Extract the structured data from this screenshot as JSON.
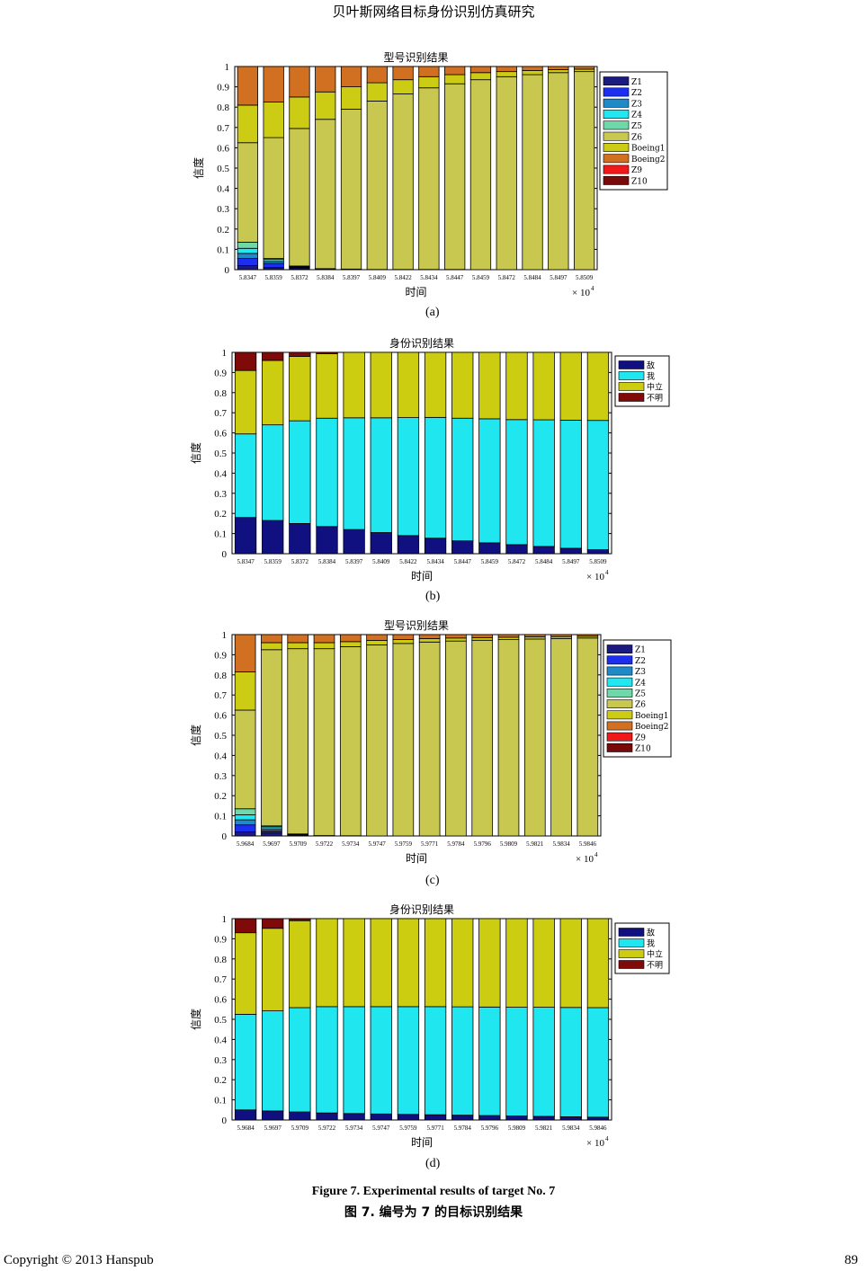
{
  "header": "贝叶斯网络目标身份识别仿真研究",
  "figure_caption_en": "Figure 7. Experimental results of target No. 7",
  "figure_caption_zh": "图 7.  编号为 7 的目标识别结果",
  "footer": {
    "copyright": "Copyright © 2013 Hanspub",
    "page_number": "89"
  },
  "chart_data": [
    {
      "type": "bar",
      "stacked": true,
      "panel_label": "(a)",
      "title": "型号识别结果",
      "xlabel": "时间",
      "ylabel": "信度",
      "x_multiplier": "× 10",
      "x_multiplier_exp": "4",
      "ylim": [
        0,
        1
      ],
      "yticks": [
        "0",
        "0.1",
        "0.2",
        "0.3",
        "0.4",
        "0.5",
        "0.6",
        "0.7",
        "0.8",
        "0.9",
        "1"
      ],
      "legend_position": "right",
      "categories": [
        "5.8347",
        "5.8359",
        "5.8372",
        "5.8384",
        "5.8397",
        "5.8409",
        "5.8422",
        "5.8434",
        "5.8447",
        "5.8459",
        "5.8472",
        "5.8484",
        "5.8497",
        "5.8509"
      ],
      "series": [
        {
          "name": "Z1",
          "color": "#1a1a80",
          "values": [
            0.02,
            0.01,
            0.005,
            0.003,
            0.002,
            0.001,
            0.001,
            0.001,
            0.001,
            0,
            0,
            0,
            0,
            0
          ]
        },
        {
          "name": "Z2",
          "color": "#1c2ef0",
          "values": [
            0.035,
            0.02,
            0.005,
            0.002,
            0.001,
            0,
            0,
            0,
            0,
            0,
            0,
            0,
            0,
            0
          ]
        },
        {
          "name": "Z3",
          "color": "#1e8ac8",
          "values": [
            0.025,
            0.01,
            0.003,
            0,
            0,
            0,
            0,
            0,
            0,
            0,
            0,
            0,
            0,
            0
          ]
        },
        {
          "name": "Z4",
          "color": "#22e6f0",
          "values": [
            0.025,
            0.01,
            0.003,
            0,
            0,
            0,
            0,
            0,
            0,
            0,
            0,
            0,
            0,
            0
          ]
        },
        {
          "name": "Z5",
          "color": "#6ed8a8",
          "values": [
            0.03,
            0.005,
            0.002,
            0,
            0,
            0,
            0,
            0,
            0,
            0,
            0,
            0,
            0,
            0
          ]
        },
        {
          "name": "Z6",
          "color": "#c8c850",
          "values": [
            0.49,
            0.595,
            0.677,
            0.735,
            0.787,
            0.829,
            0.864,
            0.894,
            0.914,
            0.935,
            0.95,
            0.96,
            0.97,
            0.975
          ]
        },
        {
          "name": "Boeing1",
          "color": "#cccc14",
          "values": [
            0.185,
            0.175,
            0.155,
            0.135,
            0.11,
            0.09,
            0.07,
            0.055,
            0.045,
            0.035,
            0.025,
            0.02,
            0.015,
            0.012
          ]
        },
        {
          "name": "Boeing2",
          "color": "#d07020",
          "values": [
            0.19,
            0.175,
            0.15,
            0.125,
            0.1,
            0.08,
            0.065,
            0.05,
            0.04,
            0.03,
            0.025,
            0.02,
            0.015,
            0.013
          ]
        },
        {
          "name": "Z9",
          "color": "#f01818",
          "values": [
            0,
            0,
            0,
            0,
            0,
            0,
            0,
            0,
            0,
            0,
            0,
            0,
            0,
            0
          ]
        },
        {
          "name": "Z10",
          "color": "#7a0a0a",
          "values": [
            0,
            0,
            0,
            0,
            0,
            0,
            0,
            0,
            0,
            0,
            0,
            0,
            0,
            0
          ]
        }
      ]
    },
    {
      "type": "bar",
      "stacked": true,
      "panel_label": "(b)",
      "title": "身份识别结果",
      "xlabel": "时间",
      "ylabel": "信度",
      "x_multiplier": "× 10",
      "x_multiplier_exp": "4",
      "ylim": [
        0,
        1
      ],
      "yticks": [
        "0",
        "0.1",
        "0.2",
        "0.3",
        "0.4",
        "0.5",
        "0.6",
        "0.7",
        "0.8",
        "0.9",
        "1"
      ],
      "legend_position": "right",
      "categories": [
        "5.8347",
        "5.8359",
        "5.8372",
        "5.8384",
        "5.8397",
        "5.8409",
        "5.8422",
        "5.8434",
        "5.8447",
        "5.8459",
        "5.8472",
        "5.8484",
        "5.8497",
        "5.8509"
      ],
      "series": [
        {
          "name": "敌",
          "color": "#101080",
          "values": [
            0.18,
            0.165,
            0.15,
            0.135,
            0.12,
            0.105,
            0.09,
            0.077,
            0.064,
            0.054,
            0.045,
            0.036,
            0.027,
            0.02
          ]
        },
        {
          "name": "我",
          "color": "#20e6f0",
          "values": [
            0.415,
            0.475,
            0.51,
            0.538,
            0.555,
            0.57,
            0.586,
            0.6,
            0.609,
            0.616,
            0.621,
            0.629,
            0.636,
            0.642
          ]
        },
        {
          "name": "中立",
          "color": "#cccc10",
          "values": [
            0.315,
            0.32,
            0.32,
            0.32,
            0.325,
            0.325,
            0.324,
            0.323,
            0.327,
            0.33,
            0.334,
            0.335,
            0.337,
            0.338
          ]
        },
        {
          "name": "不明",
          "color": "#800a0a",
          "values": [
            0.09,
            0.04,
            0.02,
            0.007,
            0,
            0,
            0,
            0,
            0,
            0,
            0,
            0,
            0,
            0
          ]
        }
      ]
    },
    {
      "type": "bar",
      "stacked": true,
      "panel_label": "(c)",
      "title": "型号识别结果",
      "xlabel": "时间",
      "ylabel": "信度",
      "x_multiplier": "× 10",
      "x_multiplier_exp": "4",
      "ylim": [
        0,
        1
      ],
      "yticks": [
        "0",
        "0.1",
        "0.2",
        "0.3",
        "0.4",
        "0.5",
        "0.6",
        "0.7",
        "0.8",
        "0.9",
        "1"
      ],
      "legend_position": "right",
      "categories": [
        "5.9684",
        "5.9697",
        "5.9709",
        "5.9722",
        "5.9734",
        "5.9747",
        "5.9759",
        "5.9771",
        "5.9784",
        "5.9796",
        "5.9809",
        "5.9821",
        "5.9834",
        "5.9846"
      ],
      "series": [
        {
          "name": "Z1",
          "color": "#1a1a80",
          "values": [
            0.02,
            0.015,
            0.005,
            0.002,
            0.001,
            0,
            0,
            0,
            0,
            0,
            0,
            0,
            0,
            0
          ]
        },
        {
          "name": "Z2",
          "color": "#1c2ef0",
          "values": [
            0.035,
            0.01,
            0.003,
            0,
            0,
            0,
            0,
            0,
            0,
            0,
            0,
            0,
            0,
            0
          ]
        },
        {
          "name": "Z3",
          "color": "#1e8ac8",
          "values": [
            0.025,
            0.01,
            0.002,
            0,
            0,
            0,
            0,
            0,
            0,
            0,
            0,
            0,
            0,
            0
          ]
        },
        {
          "name": "Z4",
          "color": "#22e6f0",
          "values": [
            0.025,
            0.01,
            0,
            0,
            0,
            0,
            0,
            0,
            0,
            0,
            0,
            0,
            0,
            0
          ]
        },
        {
          "name": "Z5",
          "color": "#6ed8a8",
          "values": [
            0.03,
            0.005,
            0,
            0,
            0,
            0,
            0,
            0,
            0,
            0,
            0,
            0,
            0,
            0
          ]
        },
        {
          "name": "Z6",
          "color": "#c8c850",
          "values": [
            0.49,
            0.875,
            0.92,
            0.928,
            0.939,
            0.949,
            0.956,
            0.963,
            0.968,
            0.972,
            0.975,
            0.978,
            0.98,
            0.983
          ]
        },
        {
          "name": "Boeing1",
          "color": "#cccc14",
          "values": [
            0.19,
            0.035,
            0.03,
            0.03,
            0.025,
            0.022,
            0.019,
            0.017,
            0.015,
            0.013,
            0.012,
            0.011,
            0.01,
            0.009
          ]
        },
        {
          "name": "Boeing2",
          "color": "#d07020",
          "values": [
            0.185,
            0.04,
            0.04,
            0.04,
            0.035,
            0.029,
            0.025,
            0.02,
            0.017,
            0.015,
            0.013,
            0.011,
            0.01,
            0.008
          ]
        },
        {
          "name": "Z9",
          "color": "#f01818",
          "values": [
            0,
            0,
            0,
            0,
            0,
            0,
            0,
            0,
            0,
            0,
            0,
            0,
            0,
            0
          ]
        },
        {
          "name": "Z10",
          "color": "#7a0a0a",
          "values": [
            0,
            0,
            0,
            0,
            0,
            0,
            0,
            0,
            0,
            0,
            0,
            0,
            0,
            0
          ]
        }
      ]
    },
    {
      "type": "bar",
      "stacked": true,
      "panel_label": "(d)",
      "title": "身份识别结果",
      "xlabel": "时间",
      "ylabel": "信度",
      "x_multiplier": "× 10",
      "x_multiplier_exp": "4",
      "ylim": [
        0,
        1
      ],
      "yticks": [
        "0",
        "0.1",
        "0.2",
        "0.3",
        "0.4",
        "0.5",
        "0.6",
        "0.7",
        "0.8",
        "0.9",
        "1"
      ],
      "legend_position": "right",
      "categories": [
        "5.9684",
        "5.9697",
        "5.9709",
        "5.9722",
        "5.9734",
        "5.9747",
        "5.9759",
        "5.9771",
        "5.9784",
        "5.9796",
        "5.9809",
        "5.9821",
        "5.9834",
        "5.9846"
      ],
      "series": [
        {
          "name": "敌",
          "color": "#101080",
          "values": [
            0.05,
            0.045,
            0.04,
            0.035,
            0.032,
            0.03,
            0.028,
            0.026,
            0.024,
            0.022,
            0.02,
            0.018,
            0.016,
            0.014
          ]
        },
        {
          "name": "我",
          "color": "#20e6f0",
          "values": [
            0.475,
            0.497,
            0.518,
            0.528,
            0.531,
            0.533,
            0.535,
            0.537,
            0.538,
            0.539,
            0.54,
            0.542,
            0.543,
            0.544
          ]
        },
        {
          "name": "中立",
          "color": "#cccc10",
          "values": [
            0.405,
            0.41,
            0.432,
            0.437,
            0.437,
            0.437,
            0.437,
            0.437,
            0.438,
            0.439,
            0.44,
            0.44,
            0.441,
            0.442
          ]
        },
        {
          "name": "不明",
          "color": "#800a0a",
          "values": [
            0.07,
            0.048,
            0.01,
            0,
            0,
            0,
            0,
            0,
            0,
            0,
            0,
            0,
            0,
            0
          ]
        }
      ]
    }
  ]
}
